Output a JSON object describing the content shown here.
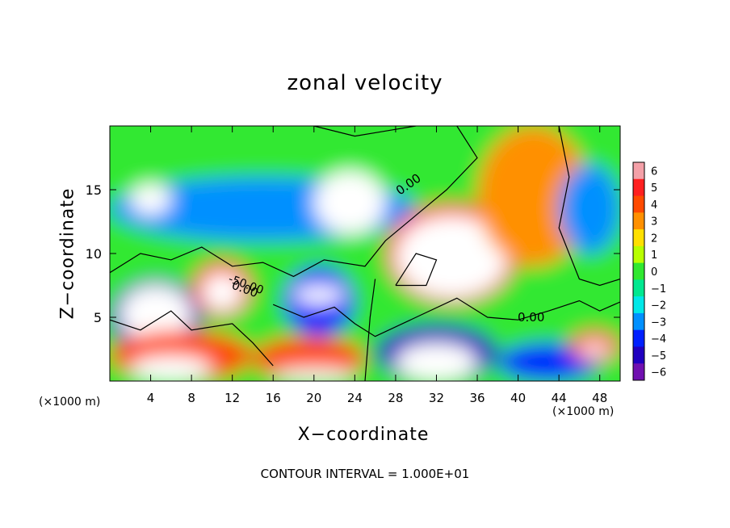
{
  "chart_data": {
    "type": "heatmap",
    "title": "zonal velocity",
    "xlabel": "X−coordinate",
    "ylabel": "Z−coordinate",
    "x_unit_label": "(×1000 m)",
    "xlim": [
      0,
      50
    ],
    "ylim": [
      0,
      20
    ],
    "x_ticks": [
      4,
      8,
      12,
      16,
      20,
      24,
      28,
      32,
      36,
      40,
      44,
      48
    ],
    "y_ticks": [
      5,
      10,
      15
    ],
    "colorbar": {
      "ticks": [
        6,
        5,
        4,
        3,
        2,
        1,
        0,
        -1,
        -2,
        -3,
        -4,
        -5,
        -6
      ],
      "tick_labels": [
        "6",
        "5",
        "4",
        "3",
        "2",
        "1",
        "0",
        "−1",
        "−2",
        "−3",
        "−4",
        "−5",
        "−6"
      ],
      "colors": [
        "#f4a0a8",
        "#ff2020",
        "#ff4a00",
        "#ff9000",
        "#ffe000",
        "#b8ff00",
        "#30e830",
        "#00e890",
        "#00e8e8",
        "#0090ff",
        "#0020ff",
        "#2000c0",
        "#7010b0"
      ]
    },
    "contour_labels": [
      "0.00",
      "0.00",
      "0.00",
      "-50.00"
    ],
    "contour_interval_text": "CONTOUR INTERVAL = 1.000E+01",
    "regions": [
      {
        "shape": "background",
        "value": 0.3
      },
      {
        "x": [
          0,
          50
        ],
        "y": [
          17,
          20
        ],
        "value": 0.5
      },
      {
        "x": [
          0,
          30
        ],
        "y": [
          11,
          16
        ],
        "value": -3.2
      },
      {
        "x": [
          2,
          6
        ],
        "y": [
          13,
          15.5
        ],
        "value": -6.5
      },
      {
        "x": [
          20,
          27
        ],
        "y": [
          11.5,
          16.5
        ],
        "value": -6.5
      },
      {
        "x": [
          27,
          40
        ],
        "y": [
          6,
          14
        ],
        "value": 5
      },
      {
        "x": [
          28,
          39
        ],
        "y": [
          6.5,
          13
        ],
        "value": 7
      },
      {
        "x": [
          36,
          47
        ],
        "y": [
          9,
          20
        ],
        "value": 3
      },
      {
        "x": [
          44,
          50
        ],
        "y": [
          10,
          17
        ],
        "value": -2.5
      },
      {
        "x": [
          0,
          9
        ],
        "y": [
          2,
          8
        ],
        "value": -4.5
      },
      {
        "x": [
          1,
          8
        ],
        "y": [
          3,
          7.5
        ],
        "value": -7
      },
      {
        "x": [
          8,
          14
        ],
        "y": [
          5,
          9.5
        ],
        "value": 5
      },
      {
        "x": [
          9,
          13
        ],
        "y": [
          5.5,
          8.5
        ],
        "value": 7
      },
      {
        "x": [
          0,
          14
        ],
        "y": [
          0,
          4
        ],
        "value": 4.5
      },
      {
        "x": [
          2,
          10
        ],
        "y": [
          0,
          2
        ],
        "value": -7
      },
      {
        "x": [
          17,
          24
        ],
        "y": [
          3.5,
          9
        ],
        "value": -4
      },
      {
        "x": [
          18,
          23
        ],
        "y": [
          6,
          7.5
        ],
        "value": -7
      },
      {
        "x": [
          14,
          25
        ],
        "y": [
          0,
          3.5
        ],
        "value": 4
      },
      {
        "x": [
          16,
          24
        ],
        "y": [
          0,
          1
        ],
        "value": -7
      },
      {
        "x": [
          26,
          38
        ],
        "y": [
          0,
          4.5
        ],
        "value": -4.5
      },
      {
        "x": [
          28,
          36
        ],
        "y": [
          0,
          3
        ],
        "value": -7
      },
      {
        "x": [
          38,
          48
        ],
        "y": [
          0,
          3
        ],
        "value": -3.5
      },
      {
        "x": [
          45,
          50
        ],
        "y": [
          1.5,
          4
        ],
        "value": 5
      },
      {
        "x": [
          46,
          49
        ],
        "y": [
          2,
          3
        ],
        "value": 7
      }
    ]
  }
}
